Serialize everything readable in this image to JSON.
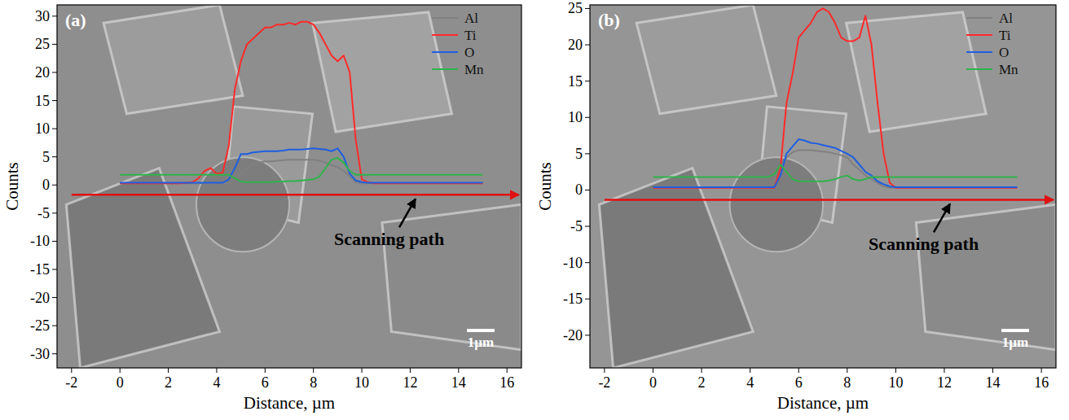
{
  "chart_data": [
    {
      "type": "line",
      "xlabel": "Distance, µm",
      "ylabel": "Counts",
      "annotations": [
        "(a)",
        "Scanning path",
        "1µm"
      ],
      "legend": "upper right",
      "xlim": [
        -2.6,
        16.6
      ],
      "xticks": [
        -2,
        0,
        2,
        4,
        6,
        8,
        10,
        12,
        14,
        16
      ],
      "ylim": [
        -32.5,
        32
      ],
      "yticks": [
        -30,
        -25,
        -20,
        -15,
        -10,
        -5,
        0,
        5,
        10,
        15,
        20,
        25,
        30
      ],
      "x": [
        0,
        0.5,
        1,
        1.5,
        2,
        2.5,
        3,
        3.25,
        3.5,
        3.75,
        4,
        4.25,
        4.5,
        4.75,
        5,
        5.25,
        5.5,
        5.75,
        6,
        6.25,
        6.5,
        6.75,
        7,
        7.25,
        7.5,
        7.75,
        8,
        8.25,
        8.5,
        8.75,
        9,
        9.25,
        9.5,
        9.75,
        10,
        10.25,
        10.5,
        11,
        11.5,
        12,
        12.5,
        13,
        13.5,
        14,
        14.5,
        15
      ],
      "series": [
        {
          "name": "Al",
          "color": "#808080",
          "values": [
            0.3,
            0.3,
            0.3,
            0.3,
            0.3,
            0.3,
            0.3,
            0.3,
            0.3,
            0.3,
            0.3,
            0.3,
            0.3,
            1,
            2,
            3,
            3.8,
            4,
            4.2,
            4.2,
            4.3,
            4.4,
            4.5,
            4.5,
            4.5,
            4.5,
            4.5,
            4.3,
            4,
            3.5,
            3.2,
            2.5,
            1.5,
            0.5,
            0.3,
            0.3,
            0.3,
            0.3,
            0.3,
            0.3,
            0.3,
            0.3,
            0.3,
            0.3,
            0.3,
            0.3
          ]
        },
        {
          "name": "Ti",
          "color": "#ff2a2a",
          "values": [
            0.3,
            0.3,
            0.3,
            0.3,
            0.3,
            0.3,
            0.5,
            1.2,
            2.5,
            3,
            2,
            2.2,
            7,
            17,
            22,
            25,
            26,
            27,
            28,
            28,
            28.5,
            28.5,
            28.8,
            28.5,
            29,
            29,
            28.5,
            27,
            25,
            23,
            22,
            23,
            20,
            8,
            1,
            0.5,
            0.3,
            0.3,
            0.3,
            0.3,
            0.3,
            0.3,
            0.3,
            0.3,
            0.3,
            0.3
          ]
        },
        {
          "name": "O",
          "color": "#1f5fe0",
          "values": [
            0.4,
            0.4,
            0.4,
            0.4,
            0.4,
            0.4,
            0.4,
            0.4,
            0.4,
            0.4,
            0.4,
            0.4,
            1,
            3,
            5.5,
            5.5,
            5.8,
            5.9,
            6,
            6,
            6,
            6.1,
            6.3,
            6.3,
            6.3,
            6.4,
            6.5,
            6.4,
            6.3,
            6,
            6.5,
            5,
            2,
            0.8,
            0.5,
            0.4,
            0.4,
            0.4,
            0.4,
            0.4,
            0.4,
            0.4,
            0.4,
            0.4,
            0.4,
            0.4
          ]
        },
        {
          "name": "Mn",
          "color": "#2fb34a",
          "values": [
            1.8,
            1.8,
            1.8,
            1.8,
            1.8,
            1.8,
            1.8,
            1.8,
            1.8,
            1.8,
            1.8,
            1.8,
            1.8,
            1.2,
            0.6,
            0.5,
            0.5,
            0.5,
            0.5,
            0.5,
            0.6,
            0.6,
            0.7,
            0.7,
            0.8,
            0.9,
            1,
            1.5,
            3,
            4.5,
            4.8,
            4,
            2.5,
            1.8,
            1.8,
            1.8,
            1.8,
            1.8,
            1.8,
            1.8,
            1.8,
            1.8,
            1.8,
            1.8,
            1.8,
            1.8
          ]
        }
      ]
    },
    {
      "type": "line",
      "xlabel": "Distance, µm",
      "ylabel": "Counts",
      "annotations": [
        "(b)",
        "Scanning path",
        "1µm"
      ],
      "legend": "upper right",
      "xlim": [
        -2.6,
        16.6
      ],
      "xticks": [
        -2,
        0,
        2,
        4,
        6,
        8,
        10,
        12,
        14,
        16
      ],
      "ylim": [
        -24.5,
        25.5
      ],
      "yticks": [
        -20,
        -15,
        -10,
        -5,
        0,
        5,
        10,
        15,
        20,
        25
      ],
      "x": [
        0,
        0.5,
        1,
        1.5,
        2,
        2.5,
        3,
        3.25,
        3.5,
        3.75,
        4,
        4.25,
        4.5,
        4.75,
        5,
        5.25,
        5.5,
        5.75,
        6,
        6.25,
        6.5,
        6.75,
        7,
        7.25,
        7.5,
        7.75,
        8,
        8.25,
        8.5,
        8.75,
        9,
        9.25,
        9.5,
        9.75,
        10,
        10.25,
        10.5,
        11,
        11.5,
        12,
        12.5,
        13,
        13.5,
        14,
        14.5,
        15
      ],
      "series": [
        {
          "name": "Al",
          "color": "#808080",
          "values": [
            0.3,
            0.3,
            0.3,
            0.3,
            0.3,
            0.3,
            0.3,
            0.3,
            0.3,
            0.3,
            0.3,
            0.3,
            0.3,
            0.3,
            0.3,
            2,
            4.5,
            5.2,
            5.5,
            5.5,
            5.5,
            5.4,
            5.3,
            5.2,
            5,
            4.8,
            4.5,
            3.5,
            2.8,
            2,
            1.5,
            1,
            0.5,
            0.3,
            0.3,
            0.3,
            0.3,
            0.3,
            0.3,
            0.3,
            0.3,
            0.3,
            0.3,
            0.3,
            0.3,
            0.3
          ]
        },
        {
          "name": "Ti",
          "color": "#ff2a2a",
          "values": [
            0.3,
            0.3,
            0.3,
            0.3,
            0.3,
            0.3,
            0.3,
            0.3,
            0.3,
            0.3,
            0.3,
            0.3,
            0.3,
            0.3,
            0.3,
            3,
            12,
            16,
            21,
            22,
            23,
            24.5,
            25,
            24.5,
            23,
            21,
            20.5,
            20.5,
            21,
            24,
            20,
            12,
            5,
            1,
            0.3,
            0.3,
            0.3,
            0.3,
            0.3,
            0.3,
            0.3,
            0.3,
            0.3,
            0.3,
            0.3,
            0.3
          ]
        },
        {
          "name": "O",
          "color": "#1f5fe0",
          "values": [
            0.4,
            0.4,
            0.4,
            0.4,
            0.4,
            0.4,
            0.4,
            0.4,
            0.4,
            0.4,
            0.4,
            0.4,
            0.4,
            0.4,
            0.4,
            2,
            5,
            6,
            7,
            6.8,
            6.5,
            6.4,
            6.2,
            6,
            5.8,
            5.4,
            5,
            4.5,
            3.5,
            2.5,
            2,
            1.2,
            0.8,
            0.5,
            0.4,
            0.4,
            0.4,
            0.4,
            0.4,
            0.4,
            0.4,
            0.4,
            0.4,
            0.4,
            0.4,
            0.4
          ]
        },
        {
          "name": "Mn",
          "color": "#2fb34a",
          "values": [
            1.8,
            1.8,
            1.8,
            1.8,
            1.8,
            1.8,
            1.8,
            1.8,
            1.8,
            1.8,
            1.8,
            1.8,
            1.8,
            1.8,
            2.2,
            3.5,
            2.5,
            1.5,
            1.2,
            1.2,
            1.2,
            1.2,
            1.2,
            1.3,
            1.5,
            1.8,
            2,
            1.5,
            1.3,
            1.5,
            1.8,
            1.8,
            1.8,
            1.8,
            1.8,
            1.8,
            1.8,
            1.8,
            1.8,
            1.8,
            1.8,
            1.8,
            1.8,
            1.8,
            1.8,
            1.8
          ]
        }
      ]
    }
  ]
}
